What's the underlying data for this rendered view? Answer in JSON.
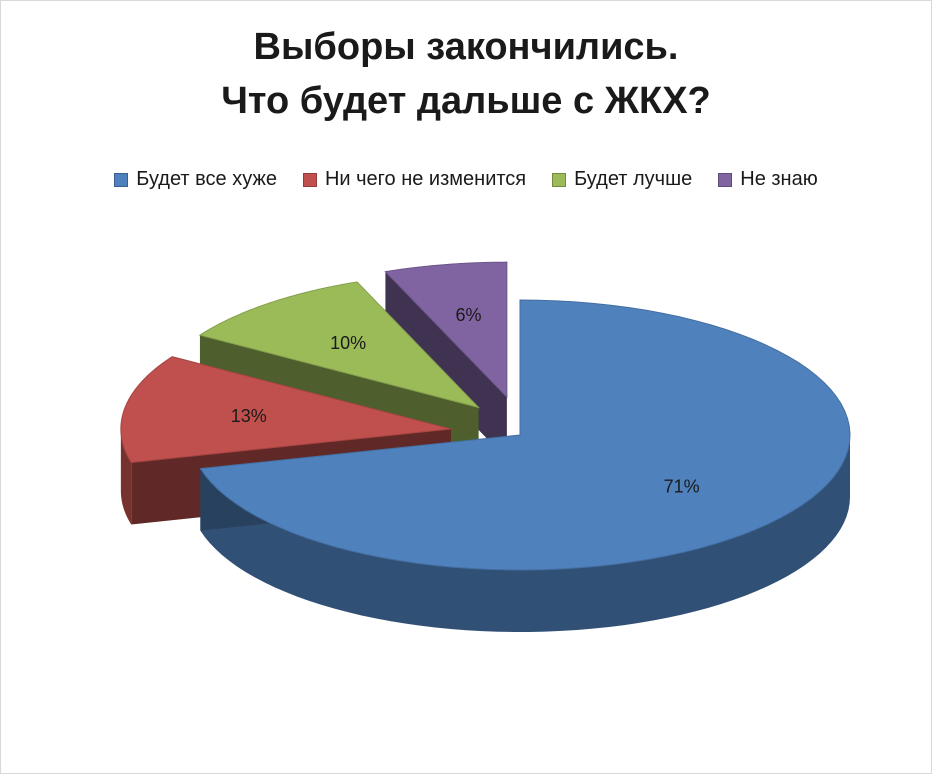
{
  "chart_data": {
    "type": "pie",
    "title": [
      "Выборы закончились.",
      "Что будет дальше с ЖКХ?"
    ],
    "categories": [
      "Будет все хуже",
      "Ни чего не изменится",
      "Будет лучше",
      "Не знаю"
    ],
    "values": [
      71,
      13,
      10,
      6
    ],
    "labels": [
      "71%",
      "13%",
      "10%",
      "6%"
    ],
    "colors": [
      "#4f81bd",
      "#c0504d",
      "#9bbb59",
      "#8064a2"
    ],
    "legend_position": "top",
    "style": "3d-exploded"
  }
}
